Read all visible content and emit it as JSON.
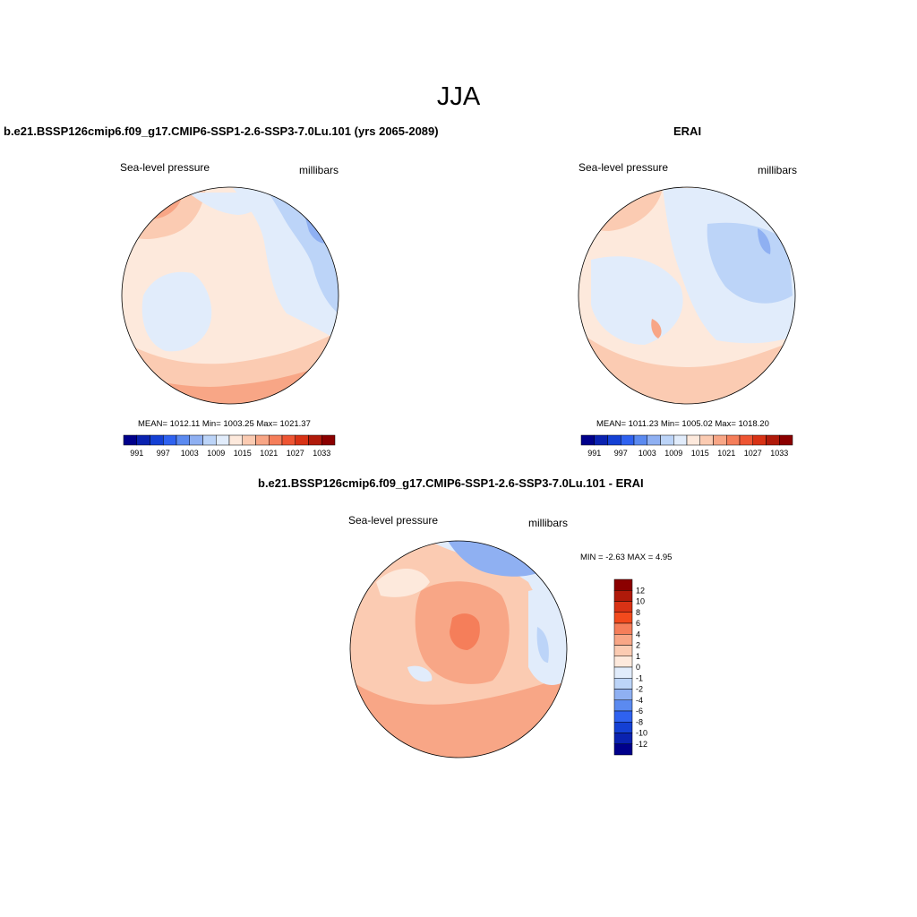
{
  "figure": {
    "season": "JJA"
  },
  "panels": [
    {
      "title": "b.e21.BSSP126cmip6.f09_g17.CMIP6-SSP1-2.6-SSP3-7.0Lu.101 (yrs 2065-2089)",
      "variable": "Sea-level pressure",
      "units": "millibars",
      "stats": "MEAN= 1012.11  Min= 1003.25  Max= 1021.37"
    },
    {
      "title": "ERAI",
      "variable": "Sea-level pressure",
      "units": "millibars",
      "stats": "MEAN= 1011.23  Min= 1005.02  Max= 1018.20"
    },
    {
      "title": "b.e21.BSSP126cmip6.f09_g17.CMIP6-SSP1-2.6-SSP3-7.0Lu.101 - ERAI",
      "variable": "Sea-level pressure",
      "units": "millibars",
      "stats": "MIN =  -2.63 MAX =   4.95"
    }
  ],
  "abs_colorbar": {
    "colors": [
      "#00008b",
      "#0a22b0",
      "#1440d4",
      "#2f62f0",
      "#5b8af0",
      "#8fb0f2",
      "#bcd4f8",
      "#e1ecfb",
      "#fde9dc",
      "#fbcbb2",
      "#f8a686",
      "#f57e5a",
      "#ee5533",
      "#d83215",
      "#b01a0a",
      "#8b0000"
    ],
    "labels": [
      "991",
      "997",
      "1003",
      "1009",
      "1015",
      "1021",
      "1027",
      "1033"
    ]
  },
  "diff_colorbar": {
    "colors": [
      "#8b0000",
      "#b01a0a",
      "#d83215",
      "#f24a1d",
      "#f57e5a",
      "#f8a686",
      "#fbcbb2",
      "#fde9dc",
      "#e1ecfb",
      "#bcd4f8",
      "#8fb0f2",
      "#5b8af0",
      "#2f62f0",
      "#1440d4",
      "#0a22b0",
      "#00008b"
    ],
    "labels": [
      "12",
      "10",
      "8",
      "6",
      "4",
      "2",
      "1",
      "0",
      "-1",
      "-2",
      "-4",
      "-6",
      "-8",
      "-10",
      "-12"
    ]
  }
}
